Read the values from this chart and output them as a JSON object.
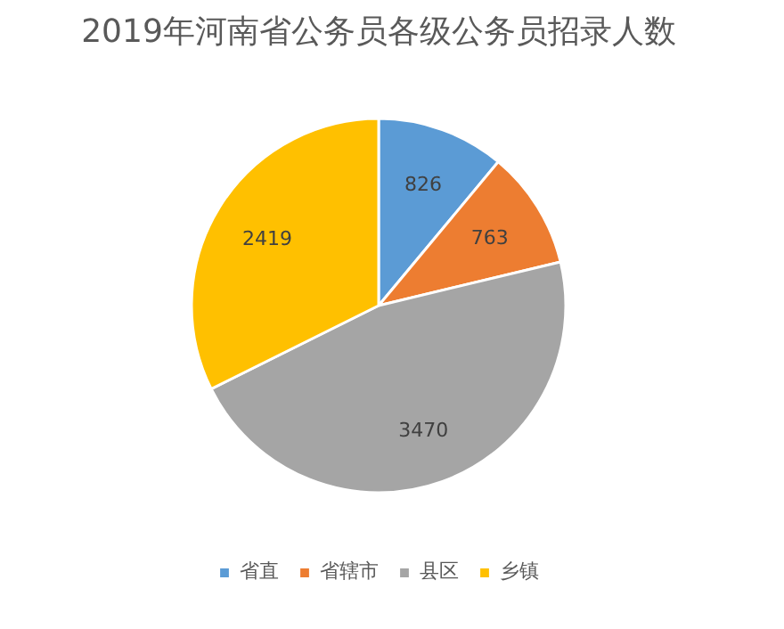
{
  "chart_data": {
    "type": "pie",
    "title": "2019年河南省公务员各级公务员招录人数",
    "categories": [
      "省直",
      "省辖市",
      "县区",
      "乡镇"
    ],
    "values": [
      826,
      763,
      3470,
      2419
    ],
    "colors": [
      "#5b9bd5",
      "#ed7d31",
      "#a5a5a5",
      "#ffc000"
    ],
    "data_labels": true,
    "legend": "bottom"
  }
}
